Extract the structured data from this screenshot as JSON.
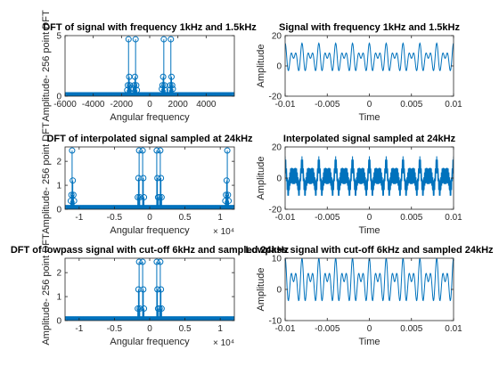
{
  "colors": {
    "series": "#0072BD",
    "axis": "#262626",
    "background": "#ffffff"
  },
  "chart_data": [
    {
      "type": "stem",
      "title": "DFT of signal with frequency 1kHz and 1.5kHz",
      "xlabel": "Angular frequency",
      "ylabel": "Amplitude- 256 point DFT",
      "xlim": [
        -6000,
        6000
      ],
      "ylim": [
        0,
        5
      ],
      "xticks": [
        -6000,
        -4000,
        -2000,
        0,
        2000,
        4000
      ],
      "xtick_labels": [
        "-6000",
        "-4000",
        "-2000",
        "0",
        "2000",
        "4000"
      ],
      "yticks": [
        0,
        5
      ],
      "ytick_labels": [
        "0",
        "5"
      ],
      "x_exponent": "",
      "grid": false,
      "series": [
        {
          "name": "",
          "points": [
            [
              -1500,
              4.7
            ],
            [
              -1453,
              1.6
            ],
            [
              -1406,
              0.9
            ],
            [
              -1359,
              0.6
            ],
            [
              -1547,
              0.9
            ],
            [
              -1594,
              0.5
            ],
            [
              -1000,
              4.7
            ],
            [
              -953,
              0.9
            ],
            [
              -906,
              0.5
            ],
            [
              -1047,
              1.6
            ],
            [
              -1094,
              0.9
            ],
            [
              -1141,
              0.6
            ],
            [
              1000,
              4.7
            ],
            [
              953,
              1.6
            ],
            [
              906,
              0.9
            ],
            [
              859,
              0.6
            ],
            [
              1047,
              0.9
            ],
            [
              1094,
              0.5
            ],
            [
              1500,
              4.7
            ],
            [
              1547,
              1.6
            ],
            [
              1594,
              0.9
            ],
            [
              1641,
              0.6
            ],
            [
              1453,
              0.9
            ],
            [
              1406,
              0.5
            ]
          ]
        }
      ],
      "floor": {
        "xmin": -6000,
        "xmax": 6000,
        "step": 47,
        "base": 0.08
      }
    },
    {
      "type": "line",
      "title": "Signal with frequency 1kHz and 1.5kHz",
      "xlabel": "Time",
      "ylabel": "Amplitude",
      "xlim": [
        -0.01,
        0.01
      ],
      "ylim": [
        -20,
        20
      ],
      "xticks": [
        -0.01,
        -0.005,
        0,
        0.005,
        0.01
      ],
      "xtick_labels": [
        "-0.01",
        "-0.005",
        "0",
        "0.005",
        "0.01"
      ],
      "yticks": [
        -20,
        0,
        20
      ],
      "ytick_labels": [
        "-20",
        "0",
        "20"
      ],
      "x_exponent": "",
      "grid": false,
      "signal": {
        "offset": 5,
        "components": [
          {
            "amp": 5,
            "freq": 1000
          },
          {
            "amp": 5,
            "freq": 1500
          }
        ],
        "samples": 500
      }
    },
    {
      "type": "stem",
      "title": "DFT of interpolated signal sampled at 24kHz",
      "xlabel": "Angular frequency",
      "ylabel": "Amplitude- 256 point DFT",
      "xlim": [
        -12000,
        12000
      ],
      "ylim": [
        0,
        2.6
      ],
      "xticks": [
        -10000,
        -5000,
        0,
        5000,
        10000
      ],
      "xtick_labels": [
        "-1",
        "-0.5",
        "0",
        "0.5",
        "1"
      ],
      "yticks": [
        0,
        1,
        2
      ],
      "ytick_labels": [
        "0",
        "1",
        "2"
      ],
      "x_exponent": "× 10⁴",
      "grid": false,
      "series": [
        {
          "name": "",
          "points": [
            [
              -11000,
              2.45
            ],
            [
              -10906,
              1.2
            ],
            [
              -10813,
              0.6
            ],
            [
              -10719,
              0.35
            ],
            [
              -11094,
              0.6
            ],
            [
              -11188,
              0.35
            ],
            [
              -1500,
              2.45
            ],
            [
              -1406,
              0.5
            ],
            [
              -1594,
              1.3
            ],
            [
              -1688,
              0.5
            ],
            [
              -1000,
              2.45
            ],
            [
              -906,
              1.3
            ],
            [
              -813,
              0.5
            ],
            [
              1000,
              2.45
            ],
            [
              1094,
              1.3
            ],
            [
              1188,
              0.5
            ],
            [
              1500,
              2.45
            ],
            [
              1406,
              0.5
            ],
            [
              1594,
              1.3
            ],
            [
              1688,
              0.5
            ],
            [
              11000,
              2.45
            ],
            [
              10906,
              1.2
            ],
            [
              10813,
              0.6
            ],
            [
              10719,
              0.35
            ],
            [
              11094,
              0.6
            ],
            [
              11188,
              0.35
            ]
          ]
        }
      ],
      "floor": {
        "xmin": -12000,
        "xmax": 12000,
        "step": 94,
        "base": 0.05
      }
    },
    {
      "type": "line",
      "title": "Interpolated signal sampled at 24kHz",
      "xlabel": "Time",
      "ylabel": "Amplitude",
      "xlim": [
        -0.01,
        0.01
      ],
      "ylim": [
        -20,
        20
      ],
      "xticks": [
        -0.01,
        -0.005,
        0,
        0.005,
        0.01
      ],
      "xtick_labels": [
        "-0.01",
        "-0.005",
        "0",
        "0.005",
        "0.01"
      ],
      "yticks": [
        -20,
        0,
        20
      ],
      "ytick_labels": [
        "-20",
        "0",
        "20"
      ],
      "x_exponent": "",
      "grid": false,
      "signal": {
        "offset": 0,
        "components": [
          {
            "amp": 4,
            "freq": 1000
          },
          {
            "amp": 4,
            "freq": 1500
          },
          {
            "amp": 6,
            "freq": 11000
          }
        ],
        "samples": 700
      }
    },
    {
      "type": "stem",
      "title": "DFT of lowpass signal with cut-off 6kHz and sampled 24kHz",
      "xlabel": "Angular frequency",
      "ylabel": "Amplitude- 256 point DFT",
      "xlim": [
        -12000,
        12000
      ],
      "ylim": [
        0,
        2.6
      ],
      "xticks": [
        -10000,
        -5000,
        0,
        5000,
        10000
      ],
      "xtick_labels": [
        "-1",
        "-0.5",
        "0",
        "0.5",
        "1"
      ],
      "yticks": [
        0,
        1,
        2
      ],
      "ytick_labels": [
        "0",
        "1",
        "2"
      ],
      "x_exponent": "× 10⁴",
      "grid": false,
      "series": [
        {
          "name": "",
          "points": [
            [
              -1500,
              2.45
            ],
            [
              -1406,
              0.5
            ],
            [
              -1594,
              1.3
            ],
            [
              -1688,
              0.5
            ],
            [
              -1000,
              2.45
            ],
            [
              -906,
              1.3
            ],
            [
              -813,
              0.5
            ],
            [
              1000,
              2.45
            ],
            [
              1094,
              1.3
            ],
            [
              1188,
              0.5
            ],
            [
              1500,
              2.45
            ],
            [
              1406,
              0.5
            ],
            [
              1594,
              1.3
            ],
            [
              1688,
              0.5
            ]
          ]
        }
      ],
      "floor": {
        "xmin": -12000,
        "xmax": 12000,
        "step": 94,
        "base": 0.05
      }
    },
    {
      "type": "line",
      "title": "Lowpass signal with cut-off 6kHz and sampled 24kHz",
      "xlabel": "Time",
      "ylabel": "Amplitude",
      "xlim": [
        -0.01,
        0.01
      ],
      "ylim": [
        -10,
        10
      ],
      "xticks": [
        -0.01,
        -0.005,
        0,
        0.005,
        0.01
      ],
      "xtick_labels": [
        "-0.01",
        "-0.005",
        "0",
        "0.005",
        "0.01"
      ],
      "yticks": [
        -10,
        0,
        10
      ],
      "ytick_labels": [
        "-10",
        "0",
        "10"
      ],
      "x_exponent": "",
      "grid": false,
      "signal": {
        "offset": 2.5,
        "components": [
          {
            "amp": 3.75,
            "freq": 1000
          },
          {
            "amp": 3.75,
            "freq": 1500
          }
        ],
        "samples": 500
      }
    }
  ]
}
